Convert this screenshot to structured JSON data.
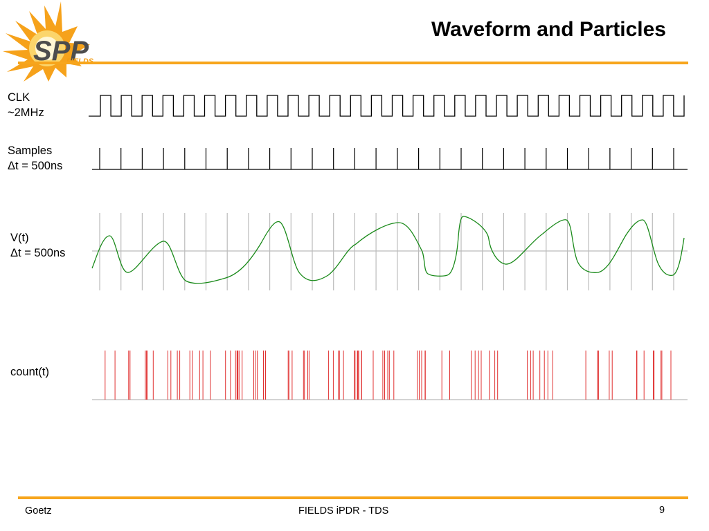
{
  "slide": {
    "title": "Waveform and Particles",
    "logo": {
      "text": "SPP",
      "subtext": "FIELDS"
    }
  },
  "signals": {
    "clk": {
      "line1": "CLK",
      "line2": "~2MHz"
    },
    "samples": {
      "line1": "Samples",
      "line2": "Δt = 500ns"
    },
    "vt": {
      "line1": "V(t)",
      "line2": "Δt = 500ns"
    },
    "count": {
      "line1": "count(t)"
    }
  },
  "footer": {
    "author": "Goetz",
    "center": "FIELDS iPDR - TDS",
    "page": "9"
  },
  "colors": {
    "accent": "#f7a51c",
    "waveform": "#1a8a1a",
    "counts": "#e03030",
    "sample_grid": "#bbbbbb",
    "trace": "#000000"
  },
  "diagram": {
    "clock_periods": 28,
    "sample_count": 28,
    "count_event_count": 92
  }
}
